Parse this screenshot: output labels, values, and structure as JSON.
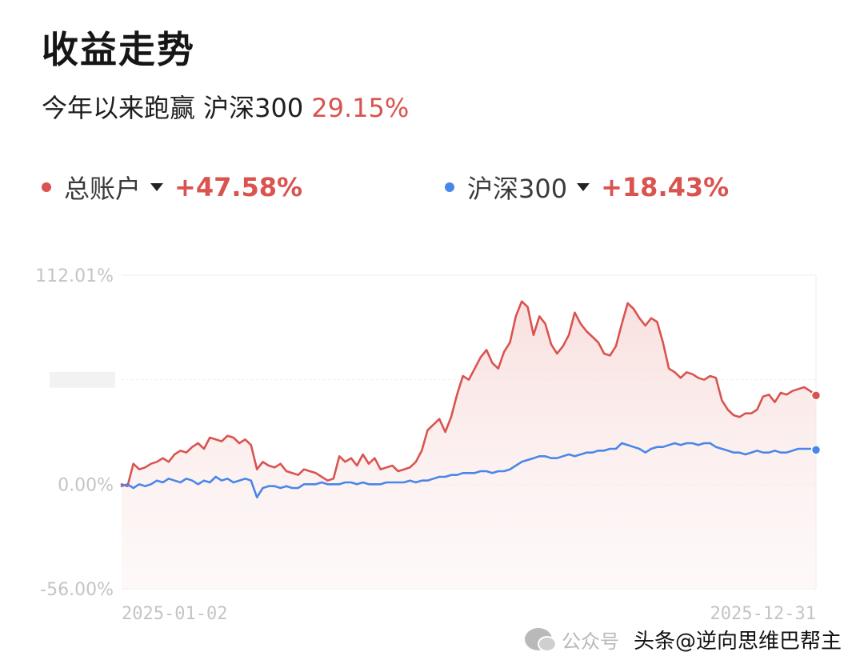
{
  "header": {
    "title": "收益走势",
    "subtitle_prefix": "今年以来跑赢 沪深300",
    "subtitle_value": "29.15%"
  },
  "legend": [
    {
      "name": "总账户",
      "value": "+47.58%",
      "color": "#d9534f"
    },
    {
      "name": "沪深300",
      "value": "+18.43%",
      "color": "#4a86e8"
    }
  ],
  "watermark": {
    "text": "公众号",
    "author": "头条@逆向思维巴帮主"
  },
  "chart_data": {
    "type": "line",
    "y_tick_labels": [
      "112.01%",
      "0.00%",
      "-56.00%"
    ],
    "x_tick_labels": [
      "2025-01-02",
      "2025-12-31"
    ],
    "ylim": [
      -56.0,
      112.01
    ],
    "grid": true,
    "legend_position": "top",
    "series": [
      {
        "name": "总账户",
        "color": "#d9534f",
        "area_fill": true,
        "values": [
          0,
          -1,
          11,
          8,
          9,
          11,
          12,
          14,
          12,
          16,
          18,
          17,
          20,
          22,
          19,
          25,
          24,
          23,
          26,
          25,
          22,
          24,
          21,
          8,
          12,
          10,
          9,
          11,
          7,
          6,
          5,
          8,
          7,
          6,
          4,
          2,
          3,
          15,
          12,
          14,
          10,
          16,
          11,
          14,
          8,
          9,
          10,
          7,
          8,
          9,
          12,
          18,
          29,
          32,
          35,
          28,
          36,
          48,
          58,
          56,
          62,
          68,
          72,
          65,
          62,
          71,
          76,
          90,
          98,
          95,
          80,
          90,
          86,
          75,
          70,
          74,
          80,
          92,
          86,
          82,
          79,
          76,
          70,
          69,
          74,
          86,
          97,
          94,
          89,
          85,
          89,
          87,
          76,
          62,
          60,
          57,
          60,
          59,
          57,
          56,
          58,
          57,
          45,
          40,
          37,
          36,
          38,
          38,
          40,
          47,
          48,
          44,
          49,
          48,
          50,
          51,
          52,
          50,
          47.58
        ]
      },
      {
        "name": "沪深300",
        "color": "#4a86e8",
        "area_fill": false,
        "values": [
          -1,
          0,
          -2,
          0,
          -1,
          0,
          2,
          1,
          3,
          2,
          1,
          3,
          2,
          0,
          2,
          1,
          4,
          2,
          3,
          1,
          2,
          3,
          2,
          -7,
          -2,
          -1,
          -1,
          -2,
          -1,
          -2,
          -2,
          0,
          0,
          0,
          1,
          0,
          0,
          0,
          1,
          1,
          0,
          1,
          0,
          0,
          0,
          1,
          1,
          1,
          1,
          2,
          1,
          2,
          2,
          3,
          4,
          4,
          5,
          5,
          6,
          6,
          6,
          7,
          7,
          6,
          7,
          7,
          8,
          10,
          12,
          13,
          14,
          15,
          15,
          14,
          14,
          15,
          16,
          15,
          16,
          17,
          17,
          18,
          18,
          19,
          19,
          22,
          21,
          20,
          19,
          17,
          19,
          20,
          20,
          21,
          22,
          21,
          22,
          22,
          21,
          22,
          22,
          20,
          19,
          18,
          17,
          17,
          16,
          17,
          18,
          17,
          17,
          18,
          17,
          17,
          18,
          19,
          19,
          19,
          18.43
        ]
      }
    ]
  }
}
